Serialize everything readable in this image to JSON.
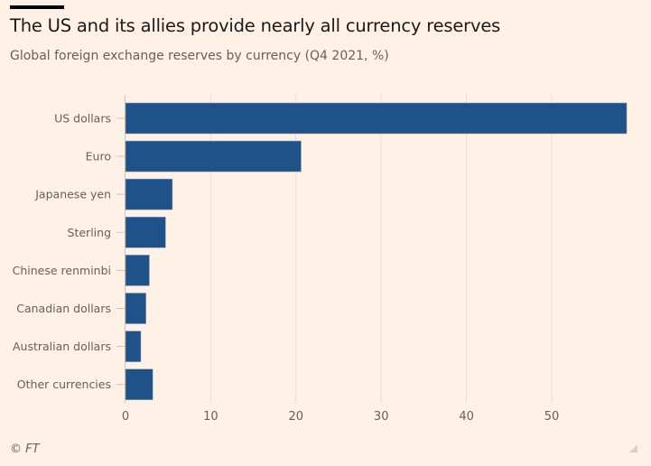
{
  "chart_data": {
    "type": "bar",
    "orientation": "horizontal",
    "title": "The US and its allies provide nearly all currency reserves",
    "subtitle": "Global foreign exchange reserves by currency (Q4 2021, %)",
    "categories": [
      "US dollars",
      "Euro",
      "Japanese yen",
      "Sterling",
      "Chinese renminbi",
      "Canadian dollars",
      "Australian dollars",
      "Other currencies"
    ],
    "values": [
      58.8,
      20.6,
      5.5,
      4.7,
      2.8,
      2.4,
      1.8,
      3.2
    ],
    "xlabel": "",
    "ylabel": "",
    "xlim": [
      0,
      59
    ],
    "xticks": [
      0,
      10,
      20,
      30,
      40,
      50
    ],
    "grid": true,
    "bar_color": "#1e5289",
    "background": "#fff1e5"
  },
  "footer": {
    "credit": "© FT"
  }
}
